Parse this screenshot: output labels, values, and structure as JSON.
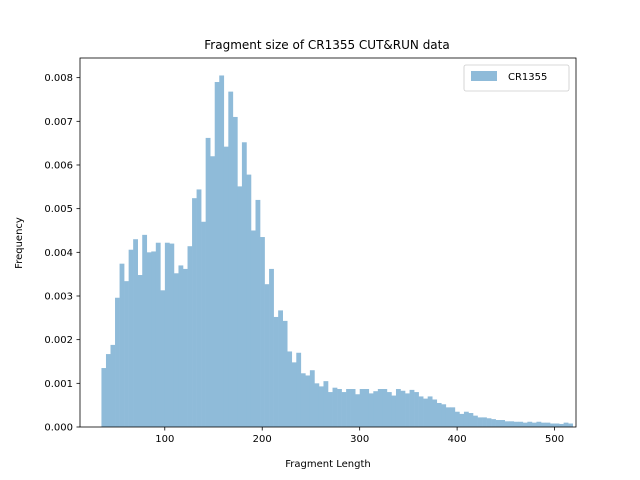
{
  "chart_data": {
    "type": "bar",
    "title": "Fragment size of CR1355 CUT&RUN data",
    "xlabel": "Fragment Length",
    "ylabel": "Frequency",
    "xlim": [
      13,
      522
    ],
    "ylim": [
      0,
      0.00845
    ],
    "x_ticks": [
      100,
      200,
      300,
      400,
      500
    ],
    "x_tick_labels": [
      "100",
      "200",
      "300",
      "400",
      "500"
    ],
    "y_ticks": [
      0,
      0.001,
      0.002,
      0.003,
      0.004,
      0.005,
      0.006,
      0.007,
      0.008
    ],
    "y_tick_labels": [
      "0.000",
      "0.001",
      "0.002",
      "0.003",
      "0.004",
      "0.005",
      "0.006",
      "0.007",
      "0.008"
    ],
    "bar_color": "#8fbbd9",
    "legend_position": "top-right",
    "series": [
      {
        "name": "CR1355",
        "bin_start": 35,
        "bin_width": 4.65,
        "values": [
          0.00135,
          0.00167,
          0.00188,
          0.00296,
          0.00374,
          0.00334,
          0.00406,
          0.0043,
          0.00348,
          0.0044,
          0.004,
          0.00402,
          0.00422,
          0.00313,
          0.00422,
          0.0042,
          0.00352,
          0.0037,
          0.00362,
          0.00414,
          0.00524,
          0.00544,
          0.0047,
          0.00662,
          0.0062,
          0.0079,
          0.00805,
          0.00642,
          0.00768,
          0.0071,
          0.00551,
          0.00652,
          0.00578,
          0.0045,
          0.0052,
          0.00435,
          0.00327,
          0.00362,
          0.00252,
          0.00267,
          0.00243,
          0.00173,
          0.00148,
          0.0017,
          0.00123,
          0.00118,
          0.0013,
          0.001,
          0.00093,
          0.00105,
          0.0008,
          0.0009,
          0.00087,
          0.0008,
          0.00087,
          0.00087,
          0.00075,
          0.00087,
          0.00087,
          0.00077,
          0.00082,
          0.00087,
          0.00087,
          0.0008,
          0.00072,
          0.00087,
          0.00083,
          0.00077,
          0.00085,
          0.0008,
          0.0007,
          0.00065,
          0.0007,
          0.00063,
          0.00055,
          0.00052,
          0.00045,
          0.00045,
          0.00035,
          0.0003,
          0.00035,
          0.00032,
          0.00026,
          0.00022,
          0.00022,
          0.0002,
          0.00018,
          0.00016,
          0.00016,
          0.00013,
          0.00013,
          0.00012,
          0.00012,
          0.0001,
          0.00012,
          0.0001,
          0.00012,
          0.0001,
          0.0001,
          8e-05,
          8e-05,
          7e-05,
          0.0001,
          8e-05
        ]
      }
    ]
  }
}
